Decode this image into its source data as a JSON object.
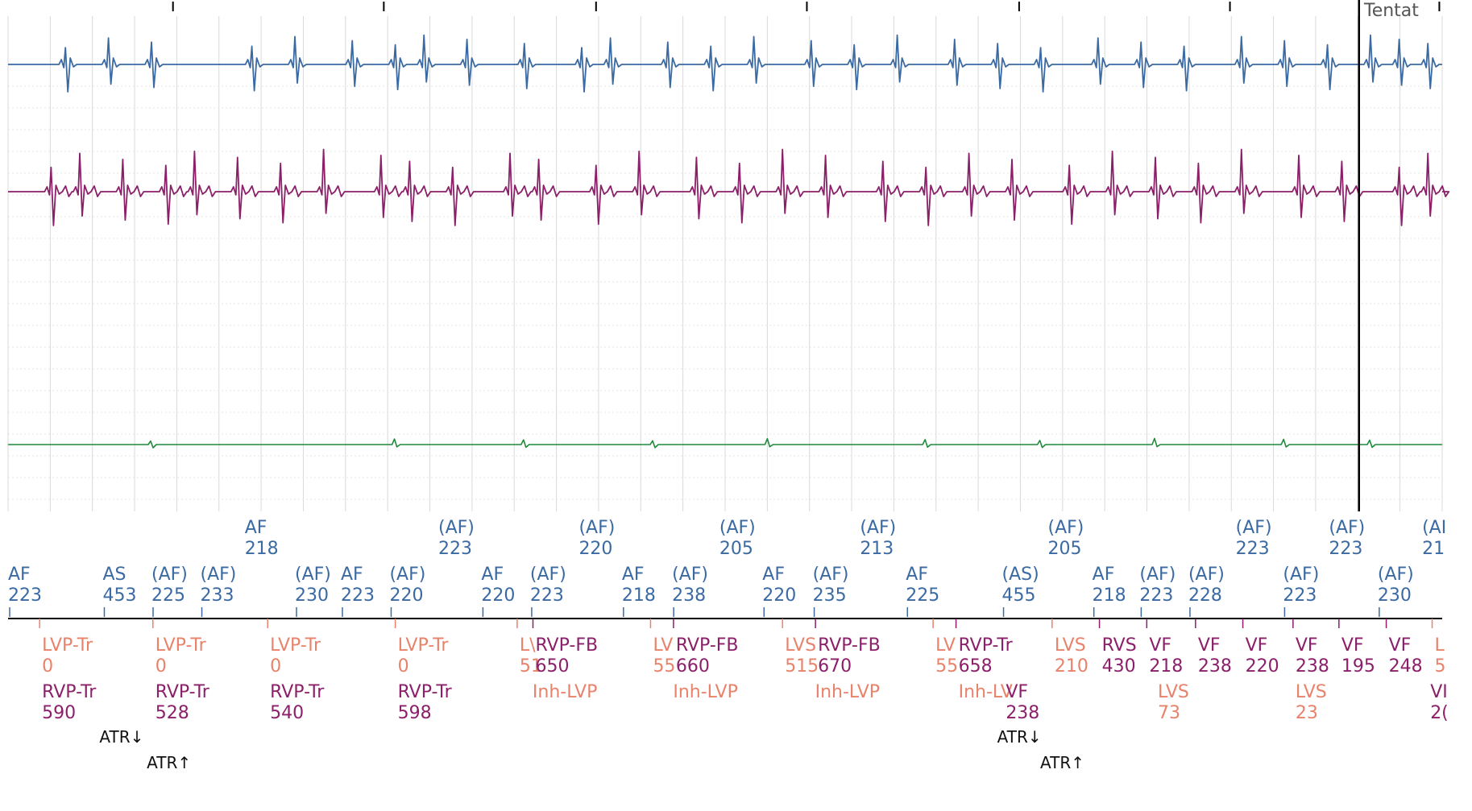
{
  "header": {
    "corner_label": "Tentat"
  },
  "colors": {
    "channel1": "#3b6aa3",
    "channel2": "#8b1f6a",
    "channel3": "#1e8a3a",
    "marker_row_top": "#3b6aa3",
    "marker_row_mid": "#3b6aa3",
    "lv_markers": "#e9826a",
    "rv_markers": "#8b1f6a",
    "atr": "#111111",
    "grid": "#d9d9d9",
    "cursor": "#000000"
  },
  "chart_data": {
    "type": "line",
    "title": "",
    "series": [
      {
        "beats": [
          0.04,
          0.07,
          0.1,
          0.17,
          0.2,
          0.24,
          0.27,
          0.29,
          0.32,
          0.36,
          0.4,
          0.42,
          0.46,
          0.49,
          0.52,
          0.56,
          0.59,
          0.62,
          0.66,
          0.69,
          0.72,
          0.76,
          0.79,
          0.82,
          0.86,
          0.89,
          0.92,
          0.95,
          0.97,
          0.99
        ]
      },
      {
        "beats": [
          0.03,
          0.05,
          0.08,
          0.11,
          0.13,
          0.16,
          0.19,
          0.22,
          0.26,
          0.28,
          0.31,
          0.35,
          0.37,
          0.41,
          0.44,
          0.48,
          0.51,
          0.54,
          0.57,
          0.61,
          0.64,
          0.67,
          0.7,
          0.74,
          0.77,
          0.8,
          0.83,
          0.86,
          0.9,
          0.93,
          0.97,
          0.99
        ]
      },
      {
        "beats": [
          0.1,
          0.27,
          0.36,
          0.45,
          0.53,
          0.64,
          0.72,
          0.8,
          0.89,
          0.95
        ]
      }
    ],
    "cursor_position": 0.942,
    "top_ticks": [
      0.115,
      0.262,
      0.41,
      0.557,
      0.705,
      0.852,
      0.998
    ],
    "annotation_rows": {
      "atrial_top": [
        {
          "at": 0.165,
          "label": "AF",
          "value": "218"
        },
        {
          "at": 0.3,
          "label": "(AF)",
          "value": "223"
        },
        {
          "at": 0.398,
          "label": "(AF)",
          "value": "220"
        },
        {
          "at": 0.496,
          "label": "(AF)",
          "value": "205"
        },
        {
          "at": 0.594,
          "label": "(AF)",
          "value": "213"
        },
        {
          "at": 0.725,
          "label": "(AF)",
          "value": "205"
        },
        {
          "at": 0.856,
          "label": "(AF)",
          "value": "223"
        },
        {
          "at": 0.921,
          "label": "(AF)",
          "value": "223"
        },
        {
          "at": 0.986,
          "label": "(AI",
          "value": "21"
        }
      ],
      "atrial_mid": [
        {
          "at": 0.0,
          "label": "AF",
          "value": "223"
        },
        {
          "at": 0.066,
          "label": "AS",
          "value": "453"
        },
        {
          "at": 0.1,
          "label": "(AF)",
          "value": "225"
        },
        {
          "at": 0.134,
          "label": "(AF)",
          "value": "233"
        },
        {
          "at": 0.2,
          "label": "(AF)",
          "value": "230"
        },
        {
          "at": 0.232,
          "label": "AF",
          "value": "223"
        },
        {
          "at": 0.266,
          "label": "(AF)",
          "value": "220"
        },
        {
          "at": 0.33,
          "label": "AF",
          "value": "220"
        },
        {
          "at": 0.364,
          "label": "(AF)",
          "value": "223"
        },
        {
          "at": 0.428,
          "label": "AF",
          "value": "218"
        },
        {
          "at": 0.463,
          "label": "(AF)",
          "value": "238"
        },
        {
          "at": 0.526,
          "label": "AF",
          "value": "220"
        },
        {
          "at": 0.561,
          "label": "(AF)",
          "value": "235"
        },
        {
          "at": 0.626,
          "label": "AF",
          "value": "225"
        },
        {
          "at": 0.693,
          "label": "(AS)",
          "value": "455"
        },
        {
          "at": 0.756,
          "label": "AF",
          "value": "218"
        },
        {
          "at": 0.789,
          "label": "(AF)",
          "value": "223"
        },
        {
          "at": 0.823,
          "label": "(AF)",
          "value": "228"
        },
        {
          "at": 0.889,
          "label": "(AF)",
          "value": "223"
        },
        {
          "at": 0.955,
          "label": "(AF)",
          "value": "230"
        }
      ],
      "ventricular_row1": [
        {
          "at": 0.022,
          "label": "LVP-Tr",
          "value": "0",
          "color": "lv"
        },
        {
          "at": 0.101,
          "label": "LVP-Tr",
          "value": "0",
          "color": "lv"
        },
        {
          "at": 0.181,
          "label": "LVP-Tr",
          "value": "0",
          "color": "lv"
        },
        {
          "at": 0.27,
          "label": "LVP-Tr",
          "value": "0",
          "color": "lv"
        },
        {
          "at": 0.355,
          "label": "L\\",
          "value": "51",
          "color": "lv"
        },
        {
          "at": 0.366,
          "label": "RVP-FB",
          "value": "650",
          "color": "rv"
        },
        {
          "at": 0.448,
          "label": "LV",
          "value": "55",
          "color": "lv"
        },
        {
          "at": 0.464,
          "label": "RVP-FB",
          "value": "660",
          "color": "rv"
        },
        {
          "at": 0.54,
          "label": "LVS",
          "value": "515",
          "color": "lv"
        },
        {
          "at": 0.563,
          "label": "RVP-FB",
          "value": "670",
          "color": "rv"
        },
        {
          "at": 0.645,
          "label": "LV",
          "value": "55",
          "color": "lv"
        },
        {
          "at": 0.661,
          "label": "RVP-Tr",
          "value": "658",
          "color": "rv"
        },
        {
          "at": 0.728,
          "label": "LVS",
          "value": "210",
          "color": "lv"
        },
        {
          "at": 0.761,
          "label": "RVS",
          "value": "430",
          "color": "rv"
        },
        {
          "at": 0.794,
          "label": "VF",
          "value": "218",
          "color": "rv"
        },
        {
          "at": 0.828,
          "label": "VF",
          "value": "238",
          "color": "rv"
        },
        {
          "at": 0.861,
          "label": "VF",
          "value": "220",
          "color": "rv"
        },
        {
          "at": 0.896,
          "label": "VF",
          "value": "238",
          "color": "rv"
        },
        {
          "at": 0.928,
          "label": "VF",
          "value": "195",
          "color": "rv"
        },
        {
          "at": 0.961,
          "label": "VF",
          "value": "248",
          "color": "rv"
        },
        {
          "at": 0.993,
          "label": "L",
          "value": "5",
          "color": "lv"
        }
      ],
      "ventricular_row2": [
        {
          "at": 0.022,
          "label": "RVP-Tr",
          "value": "590",
          "color": "rv"
        },
        {
          "at": 0.101,
          "label": "RVP-Tr",
          "value": "528",
          "color": "rv"
        },
        {
          "at": 0.181,
          "label": "RVP-Tr",
          "value": "540",
          "color": "rv"
        },
        {
          "at": 0.27,
          "label": "RVP-Tr",
          "value": "598",
          "color": "rv"
        },
        {
          "at": 0.364,
          "label": "Inh-LVP",
          "value": "",
          "color": "lv"
        },
        {
          "at": 0.462,
          "label": "Inh-LVP",
          "value": "",
          "color": "lv"
        },
        {
          "at": 0.561,
          "label": "Inh-LVP",
          "value": "",
          "color": "lv"
        },
        {
          "at": 0.661,
          "label": "Inh-LV",
          "value": "",
          "color": "lv"
        },
        {
          "at": 0.694,
          "label": "VF",
          "value": "238",
          "color": "rv"
        },
        {
          "at": 0.8,
          "label": "LVS",
          "value": "73",
          "color": "lv"
        },
        {
          "at": 0.896,
          "label": "LVS",
          "value": "23",
          "color": "lv"
        },
        {
          "at": 0.99,
          "label": "VI",
          "value": "2(",
          "color": "rv"
        }
      ],
      "atr_events": [
        {
          "at": 0.062,
          "label": "ATR↓",
          "row": 0
        },
        {
          "at": 0.095,
          "label": "ATR↑",
          "row": 1
        },
        {
          "at": 0.688,
          "label": "ATR↓",
          "row": 0
        },
        {
          "at": 0.718,
          "label": "ATR↑",
          "row": 1
        }
      ]
    }
  }
}
